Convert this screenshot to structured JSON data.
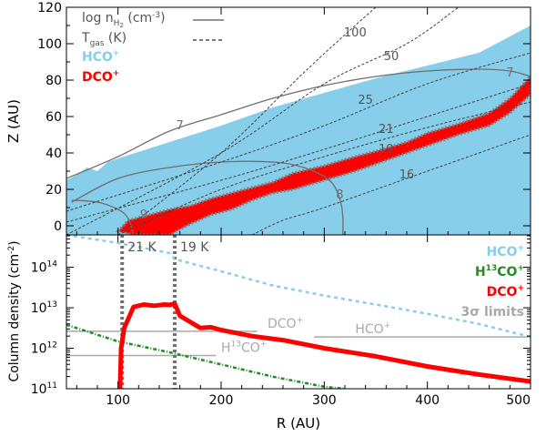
{
  "chart_data": [
    {
      "type": "area",
      "panel": "top",
      "xlabel": "",
      "ylabel": "Z (AU)",
      "xlim": [
        50,
        500
      ],
      "ylim": [
        -5,
        120
      ],
      "yticks": [
        0,
        20,
        40,
        60,
        80,
        100,
        120
      ],
      "xticks": [
        100,
        200,
        300,
        400,
        500
      ],
      "legend": {
        "position": "top-left",
        "entries": [
          {
            "label": "log n",
            "sub": "H",
            "subsub": "2",
            "unit": " (cm",
            "exp": "-3",
            "close": ")",
            "style": "solid",
            "color": "#707070"
          },
          {
            "label": "T",
            "sub": "gas",
            "unit": " (K)",
            "style": "dashed",
            "color": "#505050"
          },
          {
            "label": "HCO",
            "sup": "+",
            "color": "#87ceeb"
          },
          {
            "label": "DCO",
            "sup": "+",
            "color": "#ff0000"
          }
        ]
      },
      "series": [
        {
          "name": "HCO+ emitting region",
          "color": "#87ceeb",
          "upper": [
            [
              50,
              25
            ],
            [
              60,
              28
            ],
            [
              70,
              32
            ],
            [
              80,
              30
            ],
            [
              90,
              35
            ],
            [
              100,
              37
            ],
            [
              150,
              46
            ],
            [
              200,
              55
            ],
            [
              250,
              65
            ],
            [
              300,
              73
            ],
            [
              350,
              81
            ],
            [
              400,
              88
            ],
            [
              450,
              95
            ],
            [
              480,
              104
            ],
            [
              500,
              110
            ]
          ],
          "lower": [
            [
              50,
              -5
            ],
            [
              500,
              -5
            ]
          ]
        },
        {
          "name": "DCO+ emitting region",
          "color": "#ff0000",
          "upper": [
            [
              100,
              -3
            ],
            [
              110,
              3
            ],
            [
              130,
              6
            ],
            [
              150,
              9
            ],
            [
              170,
              11
            ],
            [
              190,
              15
            ],
            [
              210,
              18
            ],
            [
              230,
              21
            ],
            [
              250,
              24
            ],
            [
              270,
              29
            ],
            [
              300,
              33
            ],
            [
              330,
              38
            ],
            [
              350,
              41
            ],
            [
              380,
              46
            ],
            [
              400,
              51
            ],
            [
              430,
              56
            ],
            [
              460,
              62
            ],
            [
              480,
              70
            ],
            [
              500,
              82
            ]
          ],
          "lower": [
            [
              115,
              -5
            ],
            [
              150,
              -5
            ],
            [
              170,
              1
            ],
            [
              190,
              6
            ],
            [
              210,
              9
            ],
            [
              230,
              14
            ],
            [
              250,
              18
            ],
            [
              270,
              20
            ],
            [
              300,
              25
            ],
            [
              330,
              30
            ],
            [
              350,
              34
            ],
            [
              380,
              40
            ],
            [
              400,
              44
            ],
            [
              430,
              50
            ],
            [
              460,
              55
            ],
            [
              480,
              62
            ],
            [
              500,
              72
            ]
          ]
        }
      ],
      "density_contours": [
        {
          "label": "7",
          "points": [
            [
              50,
              26
            ],
            [
              100,
              38
            ],
            [
              150,
              52
            ],
            [
              200,
              61
            ],
            [
              250,
              70
            ],
            [
              300,
              77
            ],
            [
              350,
              82
            ],
            [
              400,
              85
            ],
            [
              450,
              86
            ],
            [
              480,
              85
            ],
            [
              500,
              82
            ]
          ]
        },
        {
          "label": "8",
          "points": [
            [
              55,
              13
            ],
            [
              100,
              26
            ],
            [
              150,
              32
            ],
            [
              200,
              35
            ],
            [
              250,
              35
            ],
            [
              280,
              32
            ],
            [
              305,
              25
            ],
            [
              315,
              15
            ],
            [
              318,
              5
            ],
            [
              318,
              -5
            ]
          ]
        },
        {
          "label": "9",
          "points": [
            [
              55,
              14
            ],
            [
              80,
              13
            ],
            [
              100,
              9
            ],
            [
              110,
              4
            ],
            [
              115,
              -5
            ]
          ]
        }
      ],
      "temperature_contours": [
        {
          "label": "100",
          "points": [
            [
              100,
              -5
            ],
            [
              200,
              40
            ],
            [
              280,
              84
            ],
            [
              330,
              110
            ],
            [
              350,
              120
            ]
          ]
        },
        {
          "label": "50",
          "points": [
            [
              50,
              -5
            ],
            [
              200,
              40
            ],
            [
              300,
              78
            ],
            [
              380,
              100
            ],
            [
              430,
              120
            ]
          ]
        },
        {
          "label": "25",
          "points": [
            [
              50,
              8
            ],
            [
              200,
              35
            ],
            [
              300,
              55
            ],
            [
              400,
              78
            ],
            [
              500,
              95
            ]
          ]
        },
        {
          "label": "21",
          "points": [
            [
              50,
              2
            ],
            [
              200,
              25
            ],
            [
              300,
              42
            ],
            [
              400,
              60
            ],
            [
              500,
              78
            ]
          ]
        },
        {
          "label": "19",
          "points": [
            [
              100,
              -5
            ],
            [
              200,
              20
            ],
            [
              300,
              38
            ],
            [
              400,
              54
            ],
            [
              500,
              68
            ]
          ]
        },
        {
          "label": "16",
          "points": [
            [
              230,
              -5
            ],
            [
              260,
              3
            ],
            [
              300,
              10
            ],
            [
              400,
              30
            ],
            [
              500,
              50
            ]
          ]
        }
      ]
    },
    {
      "type": "line",
      "panel": "bottom",
      "xlabel": "R (AU)",
      "ylabel": "Column density (cm",
      "ylabel_exp": "-2",
      "ylabel_close": ")",
      "xlim": [
        50,
        500
      ],
      "ylim_log10": [
        11,
        14.8
      ],
      "yticks": [
        {
          "base": "10",
          "exp": "11",
          "value": 11
        },
        {
          "base": "10",
          "exp": "12",
          "value": 12
        },
        {
          "base": "10",
          "exp": "13",
          "value": 13
        },
        {
          "base": "10",
          "exp": "14",
          "value": 14
        }
      ],
      "xticks": [
        100,
        200,
        300,
        400,
        500
      ],
      "xtick_labels": [
        "100",
        "200",
        "300",
        "400",
        "500"
      ],
      "legend": {
        "position": "top-right",
        "entries": [
          {
            "label": "HCO",
            "sup": "+",
            "color": "#87ceeb"
          },
          {
            "label": "H",
            "sup": "13",
            "rest": "CO",
            "sup2": "+",
            "color": "#228b22"
          },
          {
            "label": "DCO",
            "sup": "+",
            "color": "#ff0000"
          },
          {
            "label": "3σ  limits",
            "color": "#a9a9a9"
          }
        ]
      },
      "series": [
        {
          "name": "HCO+",
          "color": "#87ceeb",
          "style": "dashed",
          "points": [
            [
              50,
              14.8
            ],
            [
              100,
              14.6
            ],
            [
              150,
              14.35
            ],
            [
              155,
              14.2
            ],
            [
              200,
              13.9
            ],
            [
              250,
              13.55
            ],
            [
              300,
              13.3
            ],
            [
              350,
              13.08
            ],
            [
              400,
              12.85
            ],
            [
              450,
              12.6
            ],
            [
              500,
              12.28
            ]
          ]
        },
        {
          "name": "H13CO+",
          "color": "#228b22",
          "style": "dash-dot",
          "points": [
            [
              50,
              12.58
            ],
            [
              100,
              12.17
            ],
            [
              150,
              11.9
            ],
            [
              200,
              11.6
            ],
            [
              250,
              11.3
            ],
            [
              300,
              11.05
            ],
            [
              320,
              11
            ]
          ]
        },
        {
          "name": "DCO+",
          "color": "#ff0000",
          "style": "solid",
          "points": [
            [
              102,
              11
            ],
            [
              103,
              12
            ],
            [
              106,
              12.5
            ],
            [
              115,
              13.02
            ],
            [
              125,
              13.08
            ],
            [
              135,
              13.05
            ],
            [
              145,
              13.08
            ],
            [
              150,
              13.07
            ],
            [
              155,
              13.1
            ],
            [
              160,
              12.8
            ],
            [
              170,
              12.65
            ],
            [
              180,
              12.5
            ],
            [
              190,
              12.52
            ],
            [
              200,
              12.45
            ],
            [
              230,
              12.3
            ],
            [
              260,
              12.2
            ],
            [
              300,
              12
            ],
            [
              350,
              11.8
            ],
            [
              400,
              11.55
            ],
            [
              450,
              11.35
            ],
            [
              500,
              11.18
            ]
          ]
        }
      ],
      "limits": [
        {
          "label": "DCO",
          "sup": "+",
          "value_log10": 12.42,
          "x_range": [
            50,
            235
          ],
          "label_x": 245
        },
        {
          "label": "H",
          "sup": "13",
          "rest": "CO",
          "sup2": "+",
          "value_log10": 11.82,
          "x_range": [
            50,
            195
          ],
          "label_x": 200
        },
        {
          "label": "HCO",
          "sup": "+",
          "value_log10": 12.28,
          "x_range": [
            290,
            500
          ],
          "label_x": 330
        }
      ],
      "temperature_markers": [
        {
          "label": "21 K",
          "x": 104
        },
        {
          "label": "19 K",
          "x": 155
        }
      ]
    }
  ]
}
